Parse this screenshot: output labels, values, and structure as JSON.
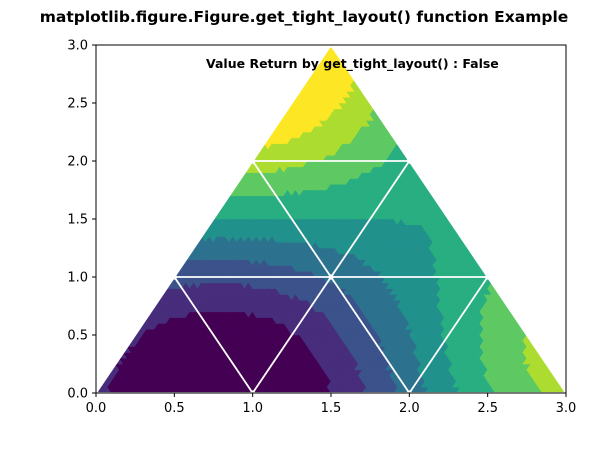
{
  "chart_data": {
    "type": "tricontourf",
    "title": "matplotlib.figure.Figure.get_tight_layout() function Example",
    "annotation": "Value Return by get_tight_layout() : False",
    "xlim": [
      0.0,
      3.0
    ],
    "ylim": [
      0.0,
      3.0
    ],
    "xticks": [
      "0.0",
      "0.5",
      "1.0",
      "1.5",
      "2.0",
      "2.5",
      "3.0"
    ],
    "yticks": [
      "0.0",
      "0.5",
      "1.0",
      "1.5",
      "2.0",
      "2.5",
      "3.0"
    ],
    "triangle_vertices": [
      [
        0.0,
        0.0
      ],
      [
        3.0,
        0.0
      ],
      [
        1.5,
        3.0
      ]
    ],
    "mesh_points": [
      [
        0.0,
        0.0
      ],
      [
        1.0,
        0.0
      ],
      [
        2.0,
        0.0
      ],
      [
        3.0,
        0.0
      ],
      [
        0.5,
        1.0
      ],
      [
        1.5,
        1.0
      ],
      [
        2.5,
        1.0
      ],
      [
        1.0,
        2.0
      ],
      [
        2.0,
        2.0
      ],
      [
        1.5,
        3.0
      ]
    ],
    "mesh_triangles": [
      [
        0,
        1,
        4
      ],
      [
        1,
        2,
        5
      ],
      [
        2,
        3,
        6
      ],
      [
        1,
        5,
        4
      ],
      [
        2,
        6,
        5
      ],
      [
        4,
        5,
        7
      ],
      [
        5,
        6,
        8
      ],
      [
        5,
        8,
        7
      ],
      [
        7,
        8,
        9
      ]
    ],
    "contour_function": "cos(x - 1.5) * ... (levels ascending dark purple to yellow)",
    "colormap": "viridis",
    "mesh_color": "#ffffff",
    "grid": false,
    "legend": "none"
  }
}
